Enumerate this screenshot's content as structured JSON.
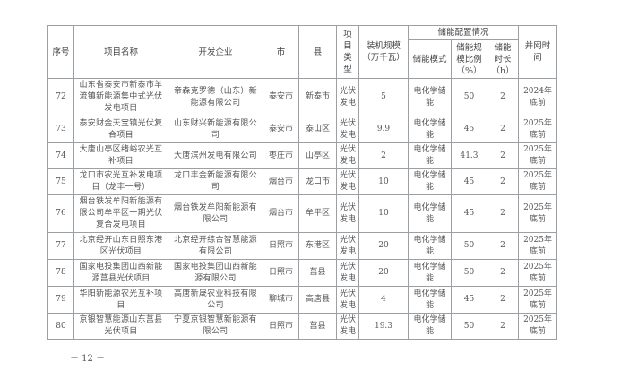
{
  "headers": {
    "no": "序号",
    "name": "项目名称",
    "developer": "开发企业",
    "city": "市",
    "county": "县",
    "type": "项目类型",
    "capacity": "装机规模（万千瓦）",
    "storage_group": "储能配置情况",
    "storage_mode": "储能模式",
    "storage_ratio": "储能规模比例（%）",
    "storage_hours": "储能时长（h）",
    "grid_time": "并网时间"
  },
  "rows": [
    {
      "no": "72",
      "name": "山东省泰安市新泰市羊流镇新能源集中式光伏发电项目",
      "developer": "帝森克罗德（山东）新能源有限公司",
      "city": "泰安市",
      "county": "新泰市",
      "type": "光伏发电",
      "capacity": "5",
      "mode": "电化学储能",
      "ratio": "50",
      "hours": "2",
      "grid": "2024年底前"
    },
    {
      "no": "73",
      "name": "泰安财金天宝镇光伏复合项目",
      "developer": "山东财兴新能源有限公司",
      "city": "泰安市",
      "county": "泰山区",
      "type": "光伏发电",
      "capacity": "9.9",
      "mode": "电化学储能",
      "ratio": "45",
      "hours": "2",
      "grid": "2025年底前"
    },
    {
      "no": "74",
      "name": "大唐山亭区绪峪农光互补项目",
      "developer": "大唐滨州发电有限公司",
      "city": "枣庄市",
      "county": "山亭区",
      "type": "光伏发电",
      "capacity": "2",
      "mode": "电化学储能",
      "ratio": "41.3",
      "hours": "2",
      "grid": "2025年底前"
    },
    {
      "no": "75",
      "name": "龙口市农光互补发电项目（龙丰一号）",
      "developer": "龙口丰金新能源有限公司",
      "city": "烟台市",
      "county": "龙口市",
      "type": "光伏发电",
      "capacity": "10",
      "mode": "电化学储能",
      "ratio": "45",
      "hours": "2",
      "grid": "2025年底前"
    },
    {
      "no": "76",
      "name": "烟台铁发牟阳新能源有限公司牟平区一期光伏复合发电项目",
      "developer": "烟台铁发牟阳新能源有限公司",
      "city": "烟台市",
      "county": "牟平区",
      "type": "光伏发电",
      "capacity": "10",
      "mode": "电化学储能",
      "ratio": "45",
      "hours": "2",
      "grid": "2025年底前"
    },
    {
      "no": "77",
      "name": "北京经开山东日照东港区光伏项目",
      "developer": "北京经开综合智慧能源有限公司",
      "city": "日照市",
      "county": "东港区",
      "type": "光伏发电",
      "capacity": "20",
      "mode": "电化学储能",
      "ratio": "50",
      "hours": "2",
      "grid": "2025年底前"
    },
    {
      "no": "78",
      "name": "国家电投集团山西新能源莒县光伏项目",
      "developer": "国家电投集团山西新能源有限公司",
      "city": "日照市",
      "county": "莒县",
      "type": "光伏发电",
      "capacity": "20",
      "mode": "电化学储能",
      "ratio": "50",
      "hours": "2",
      "grid": "2025年底前"
    },
    {
      "no": "79",
      "name": "华阳新能源农光互补项目",
      "developer": "高唐新晟农业科技有限公司",
      "city": "聊城市",
      "county": "高唐县",
      "type": "光伏发电",
      "capacity": "4",
      "mode": "电化学储能",
      "ratio": "45",
      "hours": "2",
      "grid": "2025年底前"
    },
    {
      "no": "80",
      "name": "京银智慧能源山东莒县光伏项目",
      "developer": "宁夏京银智慧新能源有限公司",
      "city": "日照市",
      "county": "莒县",
      "type": "光伏发电",
      "capacity": "19.3",
      "mode": "电化学储能",
      "ratio": "50",
      "hours": "2",
      "grid": "2025年底前"
    }
  ],
  "page_number": "－ 12 －"
}
